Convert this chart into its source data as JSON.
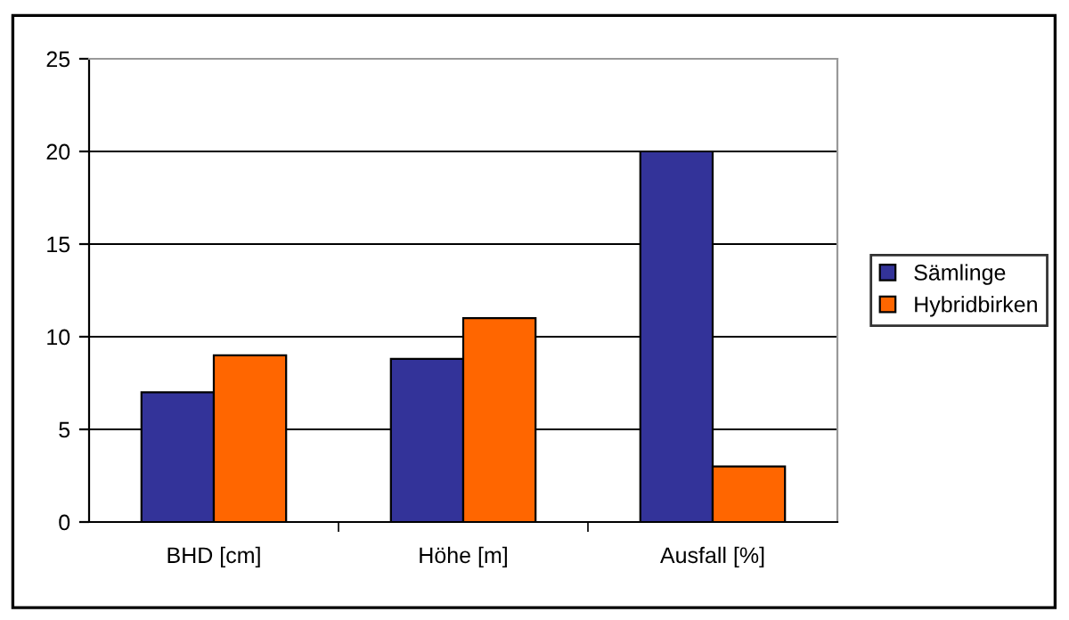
{
  "chart_data": {
    "type": "bar",
    "categories": [
      "BHD [cm]",
      "Höhe [m]",
      "Ausfall [%]"
    ],
    "series": [
      {
        "name": "Sämlinge",
        "color": "#333399",
        "values": [
          7,
          8.8,
          20
        ]
      },
      {
        "name": "Hybridbirken",
        "color": "#ff6600",
        "values": [
          9,
          11,
          3
        ]
      }
    ],
    "ylim": [
      0,
      25
    ],
    "yticks": [
      0,
      5,
      10,
      15,
      20,
      25
    ],
    "grid": "y",
    "legend": "right"
  }
}
